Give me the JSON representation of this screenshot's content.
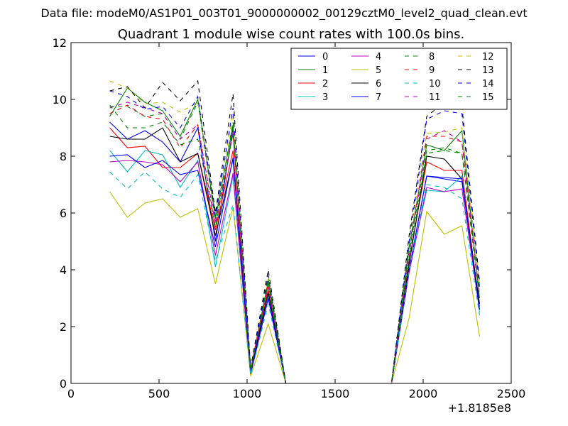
{
  "suptitle": "Data file: modeM0/AS1P01_003T01_9000000002_00129cztM0_level2_quad_clean.evt",
  "chart_data": {
    "type": "line",
    "title": "Quadrant 1 module wise count rates with 100.0s bins.",
    "xlabel": "",
    "ylabel": "",
    "x_offset_label": "+1.8185e8",
    "xlim": [
      0,
      2500
    ],
    "ylim": [
      0,
      12
    ],
    "xticks": [
      0,
      500,
      1000,
      1500,
      2000,
      2500
    ],
    "yticks": [
      0,
      2,
      4,
      6,
      8,
      10,
      12
    ],
    "grid": false,
    "legend": {
      "placement": "top-right",
      "columns": 4
    },
    "x": [
      220,
      320,
      420,
      520,
      620,
      720,
      820,
      920,
      1020,
      1120,
      1220,
      1320,
      1420,
      1520,
      1620,
      1720,
      1820,
      1920,
      2020,
      2120,
      2220,
      2320
    ],
    "series": [
      {
        "name": "0",
        "color": "#0000ff",
        "dash": false,
        "values": [
          9.2,
          8.6,
          8.9,
          8.5,
          7.8,
          9.0,
          5.0,
          9.0,
          0.4,
          3.0,
          0,
          0,
          0,
          0,
          0,
          0,
          0,
          4.0,
          7.3,
          7.2,
          7.1,
          2.8
        ]
      },
      {
        "name": "1",
        "color": "#008000",
        "dash": false,
        "values": [
          9.4,
          10.4,
          9.9,
          9.6,
          8.7,
          10.0,
          5.8,
          9.1,
          0.5,
          3.6,
          0,
          0,
          0,
          0,
          0,
          0,
          0,
          4.8,
          8.4,
          8.2,
          8.9,
          3.0
        ]
      },
      {
        "name": "2",
        "color": "#ff0000",
        "dash": false,
        "values": [
          9.0,
          8.3,
          8.35,
          7.6,
          7.6,
          8.1,
          5.4,
          8.2,
          0.4,
          3.3,
          0,
          0,
          0,
          0,
          0,
          0,
          0,
          4.3,
          7.8,
          7.5,
          7.5,
          2.7
        ]
      },
      {
        "name": "3",
        "color": "#00bfbf",
        "dash": false,
        "values": [
          8.2,
          7.45,
          8.2,
          8.05,
          6.9,
          7.85,
          4.1,
          7.3,
          0.3,
          3.1,
          0,
          0,
          0,
          0,
          0,
          0,
          0,
          4.0,
          6.8,
          6.75,
          7.3,
          2.5
        ]
      },
      {
        "name": "4",
        "color": "#bf00bf",
        "dash": false,
        "values": [
          7.8,
          7.85,
          7.8,
          7.7,
          7.1,
          7.8,
          4.5,
          7.4,
          0.3,
          3.0,
          0,
          0,
          0,
          0,
          0,
          0,
          0,
          3.9,
          6.9,
          6.75,
          6.85,
          2.6
        ]
      },
      {
        "name": "5",
        "color": "#bfbf00",
        "dash": false,
        "values": [
          6.75,
          5.85,
          6.35,
          6.5,
          5.85,
          6.15,
          3.5,
          6.2,
          0.25,
          2.1,
          0,
          0,
          0,
          0,
          0,
          0,
          0,
          2.3,
          6.05,
          5.25,
          5.55,
          1.65
        ]
      },
      {
        "name": "6",
        "color": "#000000",
        "dash": false,
        "values": [
          8.7,
          8.6,
          8.6,
          9.0,
          7.8,
          8.1,
          5.2,
          7.9,
          0.4,
          3.2,
          0,
          0,
          0,
          0,
          0,
          0,
          0,
          4.2,
          8.0,
          7.9,
          7.2,
          2.8
        ]
      },
      {
        "name": "7",
        "color": "#0000ff",
        "dash": false,
        "values": [
          8.0,
          8.05,
          7.6,
          7.85,
          7.35,
          7.5,
          4.8,
          7.95,
          0.35,
          3.0,
          0,
          0,
          0,
          0,
          0,
          0,
          0,
          4.0,
          7.3,
          7.25,
          7.2,
          2.6
        ]
      },
      {
        "name": "8",
        "color": "#008000",
        "dash": true,
        "values": [
          9.75,
          9.75,
          9.4,
          9.5,
          8.6,
          9.9,
          5.7,
          9.2,
          0.5,
          3.7,
          0,
          0,
          0,
          0,
          0,
          0,
          0,
          4.6,
          8.2,
          8.3,
          8.1,
          3.3
        ]
      },
      {
        "name": "9",
        "color": "#ff0000",
        "dash": true,
        "values": [
          9.5,
          9.8,
          9.4,
          9.3,
          8.3,
          9.1,
          5.5,
          8.8,
          0.45,
          3.5,
          0,
          0,
          0,
          0,
          0,
          0,
          0,
          4.5,
          8.7,
          8.7,
          8.5,
          3.0
        ]
      },
      {
        "name": "10",
        "color": "#00bfbf",
        "dash": true,
        "values": [
          7.45,
          6.85,
          7.45,
          6.85,
          6.55,
          7.35,
          4.3,
          6.3,
          0.3,
          2.8,
          0,
          0,
          0,
          0,
          0,
          0,
          0,
          4.0,
          7.0,
          6.9,
          6.5,
          2.4
        ]
      },
      {
        "name": "11",
        "color": "#bf00bf",
        "dash": true,
        "values": [
          9.7,
          9.9,
          9.7,
          9.5,
          8.6,
          9.1,
          5.6,
          8.9,
          0.45,
          3.4,
          0,
          0,
          0,
          0,
          0,
          0,
          0,
          4.5,
          8.6,
          8.9,
          8.5,
          3.1
        ]
      },
      {
        "name": "12",
        "color": "#bfbf00",
        "dash": true,
        "values": [
          10.65,
          10.4,
          9.85,
          9.9,
          9.55,
          9.9,
          6.0,
          9.5,
          0.5,
          3.8,
          0,
          0,
          0,
          0,
          0,
          0,
          0,
          5.0,
          8.8,
          8.85,
          9.0,
          3.5
        ]
      },
      {
        "name": "13",
        "color": "#000000",
        "dash": true,
        "values": [
          10.3,
          10.45,
          9.7,
          10.6,
          9.95,
          10.65,
          6.0,
          10.2,
          0.55,
          4.0,
          0,
          0,
          0,
          0,
          0,
          0,
          0,
          5.2,
          9.4,
          9.9,
          9.75,
          3.6
        ]
      },
      {
        "name": "14",
        "color": "#0000ff",
        "dash": true,
        "values": [
          10.3,
          10.1,
          9.65,
          9.75,
          9.0,
          10.1,
          5.9,
          9.7,
          0.5,
          3.8,
          0,
          0,
          0,
          0,
          0,
          0,
          0,
          5.0,
          9.3,
          9.6,
          9.5,
          3.4
        ]
      },
      {
        "name": "15",
        "color": "#008000",
        "dash": true,
        "values": [
          9.8,
          9.0,
          9.0,
          9.2,
          8.4,
          8.6,
          5.5,
          8.8,
          0.45,
          3.5,
          0,
          0,
          0,
          0,
          0,
          0,
          0,
          4.4,
          8.1,
          8.2,
          8.1,
          3.0
        ]
      }
    ]
  }
}
